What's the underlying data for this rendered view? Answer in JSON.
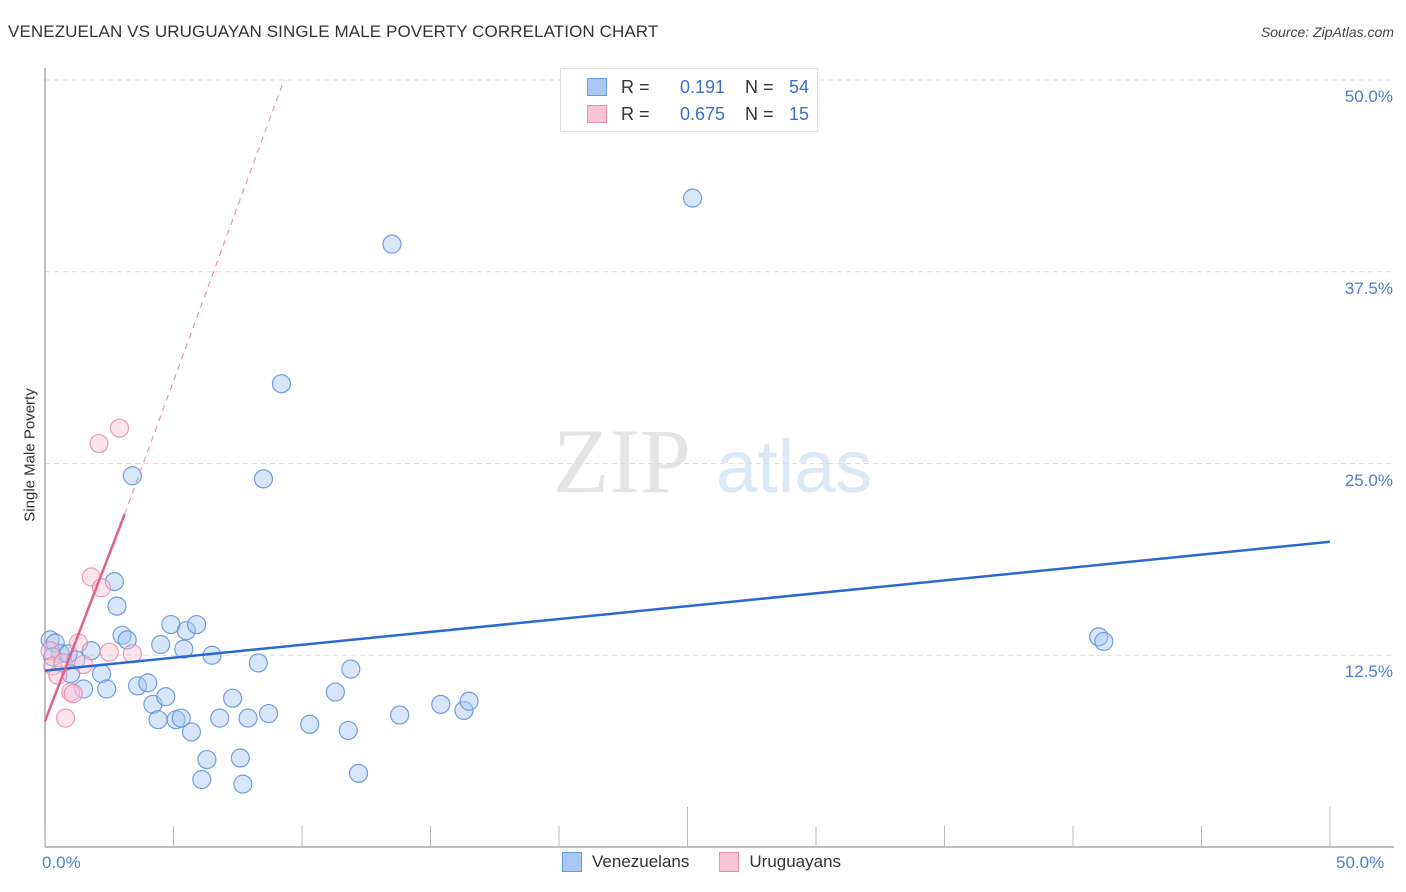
{
  "header": {
    "title": "VENEZUELAN VS URUGUAYAN SINGLE MALE POVERTY CORRELATION CHART",
    "source": "Source: ZipAtlas.com"
  },
  "legend": {
    "rows": [
      {
        "r_label": "R =",
        "r_value": "0.191",
        "n_label": "N =",
        "n_value": "54",
        "color": "#a9c8f2",
        "border": "#6a9ae0"
      },
      {
        "r_label": "R =",
        "r_value": "0.675",
        "n_label": "N =",
        "n_value": "15",
        "color": "#f9c4d4",
        "border": "#ea8fab"
      }
    ]
  },
  "bottom_legend": [
    {
      "label": "Venezuelans",
      "color": "#a9c8f2",
      "border": "#6a9ae0"
    },
    {
      "label": "Uruguayans",
      "color": "#f9c4d4",
      "border": "#ea8fab"
    }
  ],
  "watermark": {
    "zip": "ZIP",
    "atlas": "atlas"
  },
  "chart_data": {
    "type": "scatter",
    "title": "VENEZUELAN VS URUGUAYAN SINGLE MALE POVERTY CORRELATION CHART",
    "xlabel": "",
    "ylabel": "Single Male Poverty",
    "xlim": [
      0,
      50
    ],
    "ylim": [
      0,
      50
    ],
    "x_tick_labels": [
      "0.0%",
      "50.0%"
    ],
    "y_tick_labels": [
      "12.5%",
      "25.0%",
      "37.5%",
      "50.0%"
    ],
    "y_ticks": [
      12.5,
      25.0,
      37.5,
      50.0
    ],
    "grid": true,
    "legend_position": "top-center",
    "series": [
      {
        "name": "Venezuelans",
        "color": "#6a9ae0",
        "R": 0.191,
        "N": 54,
        "trend": {
          "x0": 0,
          "y0": 11.5,
          "x1": 50,
          "y1": 19.9
        },
        "points": [
          [
            0.2,
            13.5
          ],
          [
            0.4,
            13.3
          ],
          [
            0.6,
            12.6
          ],
          [
            0.3,
            12.4
          ],
          [
            0.9,
            12.6
          ],
          [
            1.2,
            12.2
          ],
          [
            1.0,
            11.3
          ],
          [
            1.5,
            10.3
          ],
          [
            1.8,
            12.8
          ],
          [
            2.2,
            11.3
          ],
          [
            2.4,
            10.3
          ],
          [
            2.7,
            17.3
          ],
          [
            2.8,
            15.7
          ],
          [
            3.0,
            13.8
          ],
          [
            3.2,
            13.5
          ],
          [
            3.4,
            24.2
          ],
          [
            3.6,
            10.5
          ],
          [
            4.0,
            10.7
          ],
          [
            4.2,
            9.3
          ],
          [
            4.4,
            8.3
          ],
          [
            4.5,
            13.2
          ],
          [
            4.7,
            9.8
          ],
          [
            4.9,
            14.5
          ],
          [
            5.1,
            8.3
          ],
          [
            5.3,
            8.4
          ],
          [
            5.4,
            12.9
          ],
          [
            5.5,
            14.1
          ],
          [
            5.7,
            7.5
          ],
          [
            5.9,
            14.5
          ],
          [
            6.1,
            4.4
          ],
          [
            6.3,
            5.7
          ],
          [
            6.5,
            12.5
          ],
          [
            6.8,
            8.4
          ],
          [
            7.3,
            9.7
          ],
          [
            7.6,
            5.8
          ],
          [
            7.7,
            4.1
          ],
          [
            7.9,
            8.4
          ],
          [
            8.3,
            12.0
          ],
          [
            8.5,
            24.0
          ],
          [
            8.7,
            8.7
          ],
          [
            9.2,
            30.2
          ],
          [
            10.3,
            8.0
          ],
          [
            11.3,
            10.1
          ],
          [
            11.8,
            7.6
          ],
          [
            11.9,
            11.6
          ],
          [
            12.2,
            4.8
          ],
          [
            13.5,
            39.3
          ],
          [
            13.8,
            8.6
          ],
          [
            15.4,
            9.3
          ],
          [
            16.3,
            8.9
          ],
          [
            16.5,
            9.5
          ],
          [
            25.2,
            42.3
          ],
          [
            41.0,
            13.7
          ],
          [
            41.2,
            13.4
          ]
        ]
      },
      {
        "name": "Uruguayans",
        "color": "#ea8fab",
        "R": 0.675,
        "N": 15,
        "trend": {
          "x0": 0,
          "y0": 8.2,
          "x1": 3.1,
          "y1": 21.7,
          "dashed_extension_to": {
            "x": 9.3,
            "y": 50
          }
        },
        "points": [
          [
            0.2,
            12.8
          ],
          [
            0.3,
            11.8
          ],
          [
            0.5,
            11.2
          ],
          [
            0.7,
            12.0
          ],
          [
            0.8,
            8.4
          ],
          [
            1.0,
            10.1
          ],
          [
            1.1,
            10.0
          ],
          [
            1.3,
            13.3
          ],
          [
            1.5,
            11.9
          ],
          [
            1.8,
            17.6
          ],
          [
            2.1,
            26.3
          ],
          [
            2.2,
            16.9
          ],
          [
            2.5,
            12.7
          ],
          [
            2.9,
            27.3
          ],
          [
            3.4,
            12.6
          ]
        ]
      }
    ]
  }
}
